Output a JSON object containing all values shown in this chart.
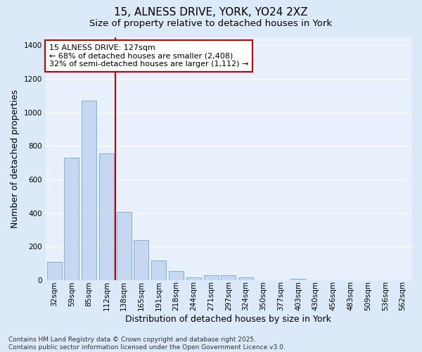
{
  "title1": "15, ALNESS DRIVE, YORK, YO24 2XZ",
  "title2": "Size of property relative to detached houses in York",
  "xlabel": "Distribution of detached houses by size in York",
  "ylabel": "Number of detached properties",
  "footer1": "Contains HM Land Registry data © Crown copyright and database right 2025.",
  "footer2": "Contains public sector information licensed under the Open Government Licence v3.0.",
  "categories": [
    "32sqm",
    "59sqm",
    "85sqm",
    "112sqm",
    "138sqm",
    "165sqm",
    "191sqm",
    "218sqm",
    "244sqm",
    "271sqm",
    "297sqm",
    "324sqm",
    "350sqm",
    "377sqm",
    "403sqm",
    "430sqm",
    "456sqm",
    "483sqm",
    "509sqm",
    "536sqm",
    "562sqm"
  ],
  "values": [
    107,
    730,
    1070,
    755,
    405,
    238,
    118,
    55,
    18,
    30,
    28,
    18,
    0,
    0,
    10,
    0,
    0,
    0,
    0,
    0,
    0
  ],
  "bar_color": "#c5d8f0",
  "bar_edge_color": "#6baed6",
  "vline_color": "#cc0000",
  "annotation_text": "15 ALNESS DRIVE: 127sqm\n← 68% of detached houses are smaller (2,408)\n32% of semi-detached houses are larger (1,112) →",
  "annotation_box_color": "#cc0000",
  "ylim": [
    0,
    1450
  ],
  "yticks": [
    0,
    200,
    400,
    600,
    800,
    1000,
    1200,
    1400
  ],
  "bg_color": "#dce9f8",
  "plot_bg_color": "#e8f0fb",
  "grid_color": "#ffffff",
  "title_fontsize": 11,
  "subtitle_fontsize": 9.5,
  "axis_label_fontsize": 9,
  "tick_fontsize": 7.5,
  "footer_fontsize": 6.5,
  "annotation_fontsize": 8
}
